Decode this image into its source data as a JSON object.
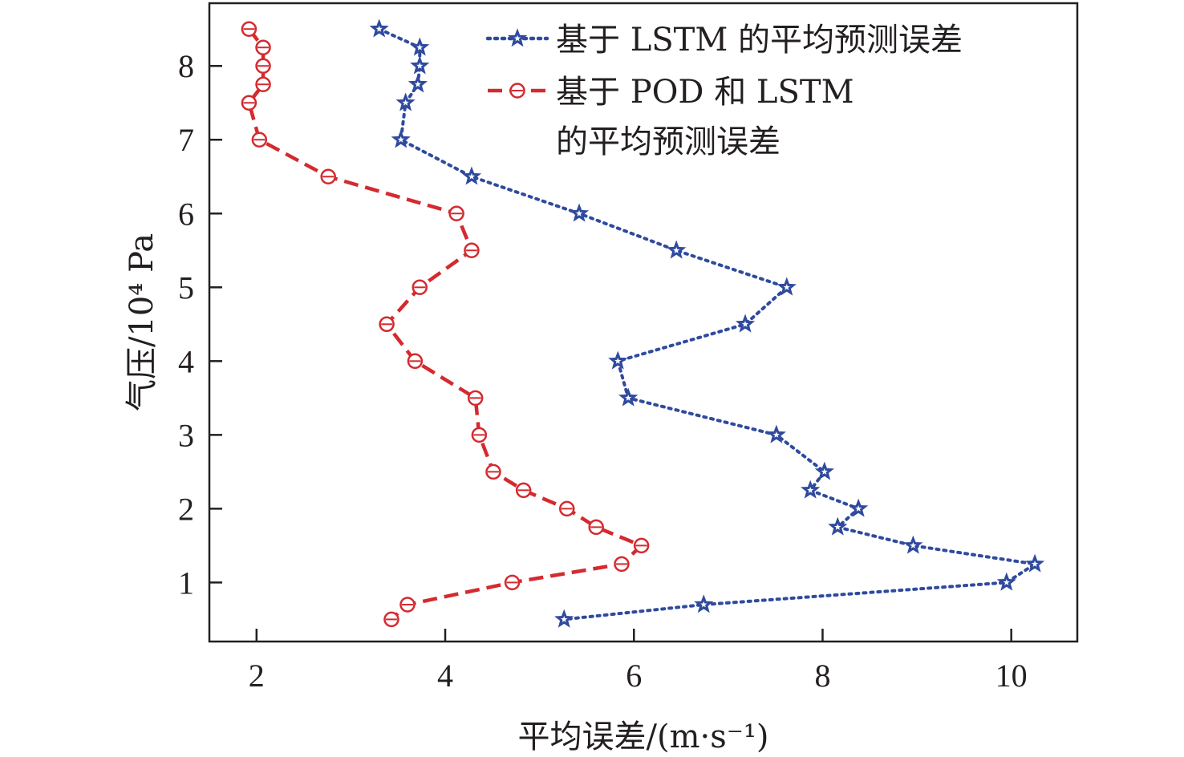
{
  "chart_data": {
    "type": "line",
    "xlabel": "平均误差/(m·s⁻¹)",
    "ylabel": "气压/10⁴ Pa",
    "xlim": [
      1.5,
      10.7
    ],
    "ylim": [
      0.2,
      8.85
    ],
    "xticks": [
      "2",
      "4",
      "6",
      "8",
      "10"
    ],
    "yticks": [
      "1",
      "2",
      "3",
      "4",
      "5",
      "6",
      "7",
      "8"
    ],
    "grid": false,
    "legend_position": "top-right",
    "series": [
      {
        "name": "基于 LSTM 的平均预测误差",
        "color": "#2f4a9e",
        "line_style": "dotted",
        "marker": "star",
        "points": [
          {
            "x": 3.3,
            "y": 8.5
          },
          {
            "x": 3.73,
            "y": 8.25
          },
          {
            "x": 3.73,
            "y": 8.0
          },
          {
            "x": 3.71,
            "y": 7.75
          },
          {
            "x": 3.58,
            "y": 7.5
          },
          {
            "x": 3.53,
            "y": 7.0
          },
          {
            "x": 4.28,
            "y": 6.5
          },
          {
            "x": 5.42,
            "y": 6.0
          },
          {
            "x": 6.45,
            "y": 5.5
          },
          {
            "x": 7.62,
            "y": 5.0
          },
          {
            "x": 7.18,
            "y": 4.5
          },
          {
            "x": 5.83,
            "y": 4.0
          },
          {
            "x": 5.94,
            "y": 3.5
          },
          {
            "x": 7.51,
            "y": 3.0
          },
          {
            "x": 8.02,
            "y": 2.5
          },
          {
            "x": 7.87,
            "y": 2.25
          },
          {
            "x": 8.38,
            "y": 2.0
          },
          {
            "x": 8.16,
            "y": 1.75
          },
          {
            "x": 8.96,
            "y": 1.5
          },
          {
            "x": 10.25,
            "y": 1.25
          },
          {
            "x": 9.95,
            "y": 1.0
          },
          {
            "x": 6.74,
            "y": 0.7
          },
          {
            "x": 5.26,
            "y": 0.5
          }
        ]
      },
      {
        "name": "基于 POD 和 LSTM",
        "name_line2": "的平均预测误差",
        "color": "#d42a2f",
        "line_style": "dashed",
        "marker": "circle",
        "points": [
          {
            "x": 1.92,
            "y": 8.5
          },
          {
            "x": 2.07,
            "y": 8.25
          },
          {
            "x": 2.07,
            "y": 8.0
          },
          {
            "x": 2.07,
            "y": 7.75
          },
          {
            "x": 1.92,
            "y": 7.5
          },
          {
            "x": 2.03,
            "y": 7.0
          },
          {
            "x": 2.76,
            "y": 6.5
          },
          {
            "x": 4.12,
            "y": 6.0
          },
          {
            "x": 4.28,
            "y": 5.5
          },
          {
            "x": 3.73,
            "y": 5.0
          },
          {
            "x": 3.38,
            "y": 4.5
          },
          {
            "x": 3.68,
            "y": 4.0
          },
          {
            "x": 4.32,
            "y": 3.5
          },
          {
            "x": 4.36,
            "y": 3.0
          },
          {
            "x": 4.51,
            "y": 2.5
          },
          {
            "x": 4.83,
            "y": 2.25
          },
          {
            "x": 5.29,
            "y": 2.0
          },
          {
            "x": 5.6,
            "y": 1.75
          },
          {
            "x": 6.08,
            "y": 1.5
          },
          {
            "x": 5.87,
            "y": 1.25
          },
          {
            "x": 4.71,
            "y": 1.0
          },
          {
            "x": 3.6,
            "y": 0.7
          },
          {
            "x": 3.43,
            "y": 0.5
          }
        ]
      }
    ]
  }
}
